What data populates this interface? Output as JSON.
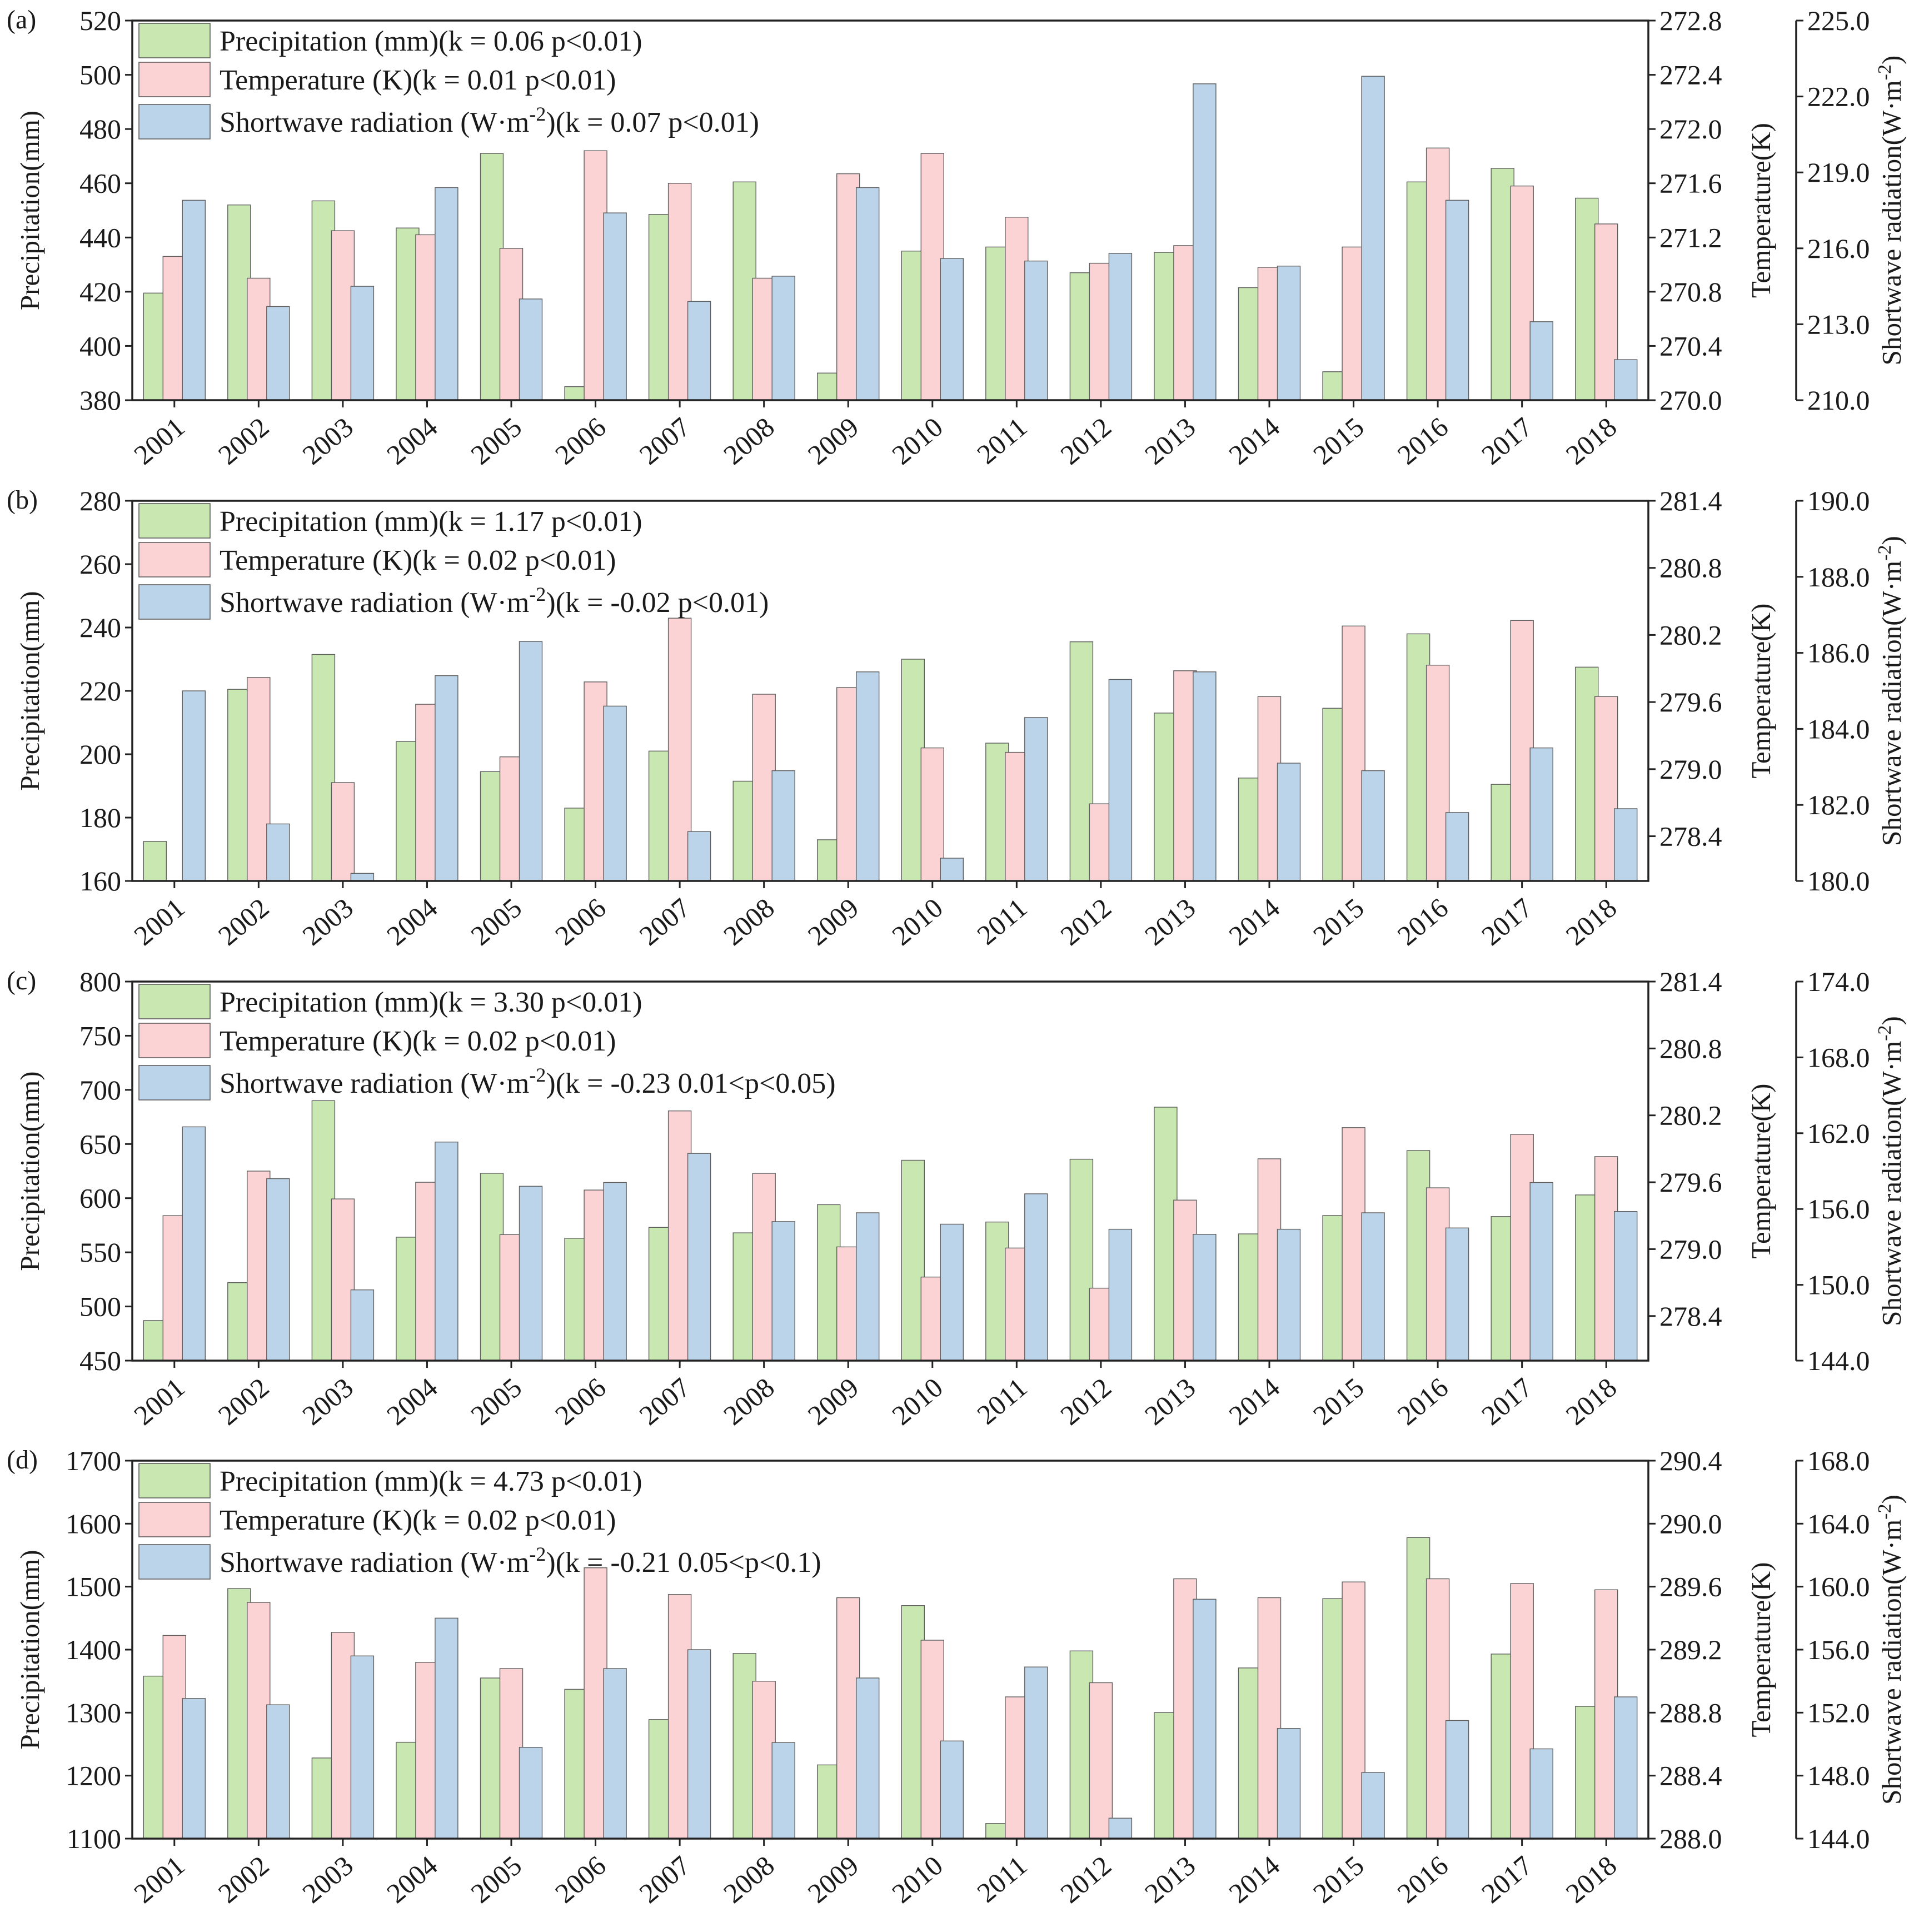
{
  "chart_data": [
    {
      "type": "bar",
      "panel_label": "(a)",
      "categories": [
        "2001",
        "2002",
        "2003",
        "2004",
        "2005",
        "2006",
        "2007",
        "2008",
        "2009",
        "2010",
        "2011",
        "2012",
        "2013",
        "2014",
        "2015",
        "2016",
        "2017",
        "2018"
      ],
      "ylabel": "Precipitation(mm)",
      "y2label": "Temperature(K)",
      "y3label": "Shortwave radiation(W·m-2)",
      "ylim": [
        380,
        520
      ],
      "yticks": [
        "380",
        "400",
        "420",
        "440",
        "460",
        "480",
        "500",
        "520"
      ],
      "y2lim": [
        270.0,
        272.8
      ],
      "y2ticks": [
        "270.0",
        "270.4",
        "270.8",
        "271.2",
        "271.6",
        "272.0",
        "272.4",
        "272.8"
      ],
      "y3lim": [
        210.0,
        225.0
      ],
      "y3ticks": [
        "210.0",
        "213.0",
        "216.0",
        "219.0",
        "222.0",
        "225.0"
      ],
      "legend": [
        {
          "pre": "Precipitation (mm)(k = 0.06 p<0.01)",
          "sup": "",
          "post": ""
        },
        {
          "pre": "Temperature (K)(k = 0.01 p<0.01)",
          "sup": "",
          "post": ""
        },
        {
          "pre": "Shortwave radiation (W·m",
          "sup": "-2",
          "post": ")(k = 0.07 p<0.01)"
        }
      ],
      "series": [
        {
          "name": "Precipitation",
          "axis": "left",
          "color": "#c9e7b0",
          "values": [
            419.5,
            452,
            453.5,
            443.5,
            471,
            385,
            448.5,
            460.5,
            390,
            435,
            436.5,
            427,
            434.5,
            421.5,
            390.5,
            460.5,
            465.5,
            454.5
          ]
        },
        {
          "name": "Temperature",
          "axis": "right",
          "color": "#fbd3d4",
          "values": [
            271.06,
            270.9,
            271.25,
            271.22,
            271.12,
            271.84,
            271.6,
            270.9,
            271.67,
            271.82,
            271.35,
            271.01,
            271.14,
            270.98,
            271.13,
            271.86,
            271.58,
            271.3
          ]
        },
        {
          "name": "Shortwave radiation",
          "axis": "right2",
          "color": "#bcd4ea",
          "values": [
            217.9,
            213.7,
            214.5,
            218.4,
            214.0,
            217.4,
            213.9,
            214.9,
            218.4,
            215.6,
            215.5,
            215.8,
            222.5,
            215.3,
            222.8,
            217.9,
            213.1,
            211.6
          ]
        }
      ]
    },
    {
      "type": "bar",
      "panel_label": "(b)",
      "categories": [
        "2001",
        "2002",
        "2003",
        "2004",
        "2005",
        "2006",
        "2007",
        "2008",
        "2009",
        "2010",
        "2011",
        "2012",
        "2013",
        "2014",
        "2015",
        "2016",
        "2017",
        "2018"
      ],
      "ylabel": "Precipitation(mm)",
      "y2label": "Temperature(K)",
      "y3label": "Shortwave radiation(W·m-2)",
      "ylim": [
        160,
        280
      ],
      "yticks": [
        "160",
        "180",
        "200",
        "220",
        "240",
        "260",
        "280"
      ],
      "y2lim": [
        278.0,
        281.4
      ],
      "y2ticks": [
        "278.4",
        "279.0",
        "279.6",
        "280.2",
        "280.8",
        "281.4"
      ],
      "y3lim": [
        180.0,
        190.0
      ],
      "y3ticks": [
        "180.0",
        "182.0",
        "184.0",
        "186.0",
        "188.0",
        "190.0"
      ],
      "legend": [
        {
          "pre": "Precipitation (mm)(k = 1.17 p<0.01)",
          "sup": "",
          "post": ""
        },
        {
          "pre": "Temperature (K)(k = 0.02 p<0.01)",
          "sup": "",
          "post": ""
        },
        {
          "pre": "Shortwave radiation (W·m",
          "sup": "-2",
          "post": ")(k = -0.02 p<0.01)"
        }
      ],
      "series": [
        {
          "name": "Precipitation",
          "axis": "left",
          "color": "#c9e7b0",
          "values": [
            172.5,
            220.5,
            231.5,
            204,
            194.5,
            183,
            201,
            191.5,
            173,
            230,
            203.5,
            235.5,
            213,
            192.5,
            214.5,
            238,
            190.5,
            227.5
          ]
        },
        {
          "name": "Temperature",
          "axis": "right",
          "color": "#fbd3d4",
          "values": [
            278.0,
            279.82,
            278.88,
            279.58,
            279.11,
            279.78,
            280.35,
            279.67,
            279.73,
            279.19,
            279.15,
            278.69,
            279.88,
            279.65,
            280.28,
            279.93,
            280.33,
            279.65
          ]
        },
        {
          "name": "Shortwave radiation",
          "axis": "right2",
          "color": "#bcd4ea",
          "values": [
            185.0,
            181.5,
            180.2,
            185.4,
            186.3,
            184.6,
            181.3,
            182.9,
            185.5,
            180.6,
            184.3,
            185.3,
            185.5,
            183.1,
            182.9,
            181.8,
            183.5,
            181.9
          ]
        }
      ]
    },
    {
      "type": "bar",
      "panel_label": "(c)",
      "categories": [
        "2001",
        "2002",
        "2003",
        "2004",
        "2005",
        "2006",
        "2007",
        "2008",
        "2009",
        "2010",
        "2011",
        "2012",
        "2013",
        "2014",
        "2015",
        "2016",
        "2017",
        "2018"
      ],
      "ylabel": "Precipitation(mm)",
      "y2label": "Temperature(K)",
      "y3label": "Shortwave radiation(W·m-2)",
      "ylim": [
        450,
        800
      ],
      "yticks": [
        "450",
        "500",
        "550",
        "600",
        "650",
        "700",
        "750",
        "800"
      ],
      "y2lim": [
        278.0,
        281.4
      ],
      "y2ticks": [
        "278.4",
        "279.0",
        "279.6",
        "280.2",
        "280.8",
        "281.4"
      ],
      "y3lim": [
        144.0,
        174.0
      ],
      "y3ticks": [
        "144.0",
        "150.0",
        "156.0",
        "162.0",
        "168.0",
        "174.0"
      ],
      "legend": [
        {
          "pre": "Precipitation (mm)(k = 3.30 p<0.01)",
          "sup": "",
          "post": ""
        },
        {
          "pre": "Temperature (K)(k = 0.02 p<0.01)",
          "sup": "",
          "post": ""
        },
        {
          "pre": "Shortwave radiation (W·m",
          "sup": "-2",
          "post": ")(k = -0.23 0.01<p<0.05)"
        }
      ],
      "series": [
        {
          "name": "Precipitation",
          "axis": "left",
          "color": "#c9e7b0",
          "values": [
            487,
            522,
            690,
            564,
            623,
            563,
            573,
            568,
            594,
            635,
            578,
            636,
            684,
            567,
            584,
            644,
            583,
            603
          ]
        },
        {
          "name": "Temperature",
          "axis": "right",
          "color": "#fbd3d4",
          "values": [
            279.3,
            279.7,
            279.45,
            279.6,
            279.13,
            279.53,
            280.24,
            279.68,
            279.02,
            278.75,
            279.01,
            278.65,
            279.44,
            279.81,
            280.09,
            279.55,
            280.03,
            279.83
          ]
        },
        {
          "name": "Shortwave radiation",
          "axis": "right2",
          "color": "#bcd4ea",
          "values": [
            162.5,
            158.4,
            149.6,
            161.3,
            157.8,
            158.1,
            160.4,
            155.0,
            155.7,
            154.8,
            157.2,
            154.4,
            154.0,
            154.4,
            155.7,
            154.5,
            158.1,
            155.8
          ]
        }
      ]
    },
    {
      "type": "bar",
      "panel_label": "(d)",
      "categories": [
        "2001",
        "2002",
        "2003",
        "2004",
        "2005",
        "2006",
        "2007",
        "2008",
        "2009",
        "2010",
        "2011",
        "2012",
        "2013",
        "2014",
        "2015",
        "2016",
        "2017",
        "2018"
      ],
      "ylabel": "Precipitation(mm)",
      "y2label": "Temperature(K)",
      "y3label": "Shortwave radiation(W·m-2)",
      "ylim": [
        1100,
        1700
      ],
      "yticks": [
        "1100",
        "1200",
        "1300",
        "1400",
        "1500",
        "1600",
        "1700"
      ],
      "y2lim": [
        288.0,
        290.4
      ],
      "y2ticks": [
        "288.0",
        "288.4",
        "288.8",
        "289.2",
        "289.6",
        "290.0",
        "290.4"
      ],
      "y3lim": [
        144.0,
        168.0
      ],
      "y3ticks": [
        "144.0",
        "148.0",
        "152.0",
        "156.0",
        "160.0",
        "164.0",
        "168.0"
      ],
      "legend": [
        {
          "pre": "Precipitation (mm)(k = 4.73 p<0.01)",
          "sup": "",
          "post": ""
        },
        {
          "pre": "Temperature (K)(k = 0.02 p<0.01)",
          "sup": "",
          "post": ""
        },
        {
          "pre": "Shortwave radiation (W·m",
          "sup": "-2",
          "post": ")(k = -0.21 0.05<p<0.1)"
        }
      ],
      "series": [
        {
          "name": "Precipitation",
          "axis": "left",
          "color": "#c9e7b0",
          "values": [
            1358,
            1497,
            1228,
            1253,
            1355,
            1337,
            1289,
            1394,
            1217,
            1470,
            1124,
            1398,
            1300,
            1371,
            1481,
            1578,
            1393,
            1310
          ]
        },
        {
          "name": "Temperature",
          "axis": "right",
          "color": "#fbd3d4",
          "values": [
            289.29,
            289.5,
            289.31,
            289.12,
            289.08,
            289.72,
            289.55,
            289.0,
            289.53,
            289.26,
            288.9,
            288.99,
            289.65,
            289.53,
            289.63,
            289.65,
            289.62,
            289.58
          ]
        },
        {
          "name": "Shortwave radiation",
          "axis": "right2",
          "color": "#bcd4ea",
          "values": [
            152.9,
            152.5,
            155.6,
            158.0,
            149.8,
            154.8,
            156.0,
            150.1,
            154.2,
            150.2,
            154.9,
            145.3,
            159.2,
            151.0,
            148.2,
            151.5,
            149.7,
            153.0
          ]
        }
      ]
    }
  ]
}
